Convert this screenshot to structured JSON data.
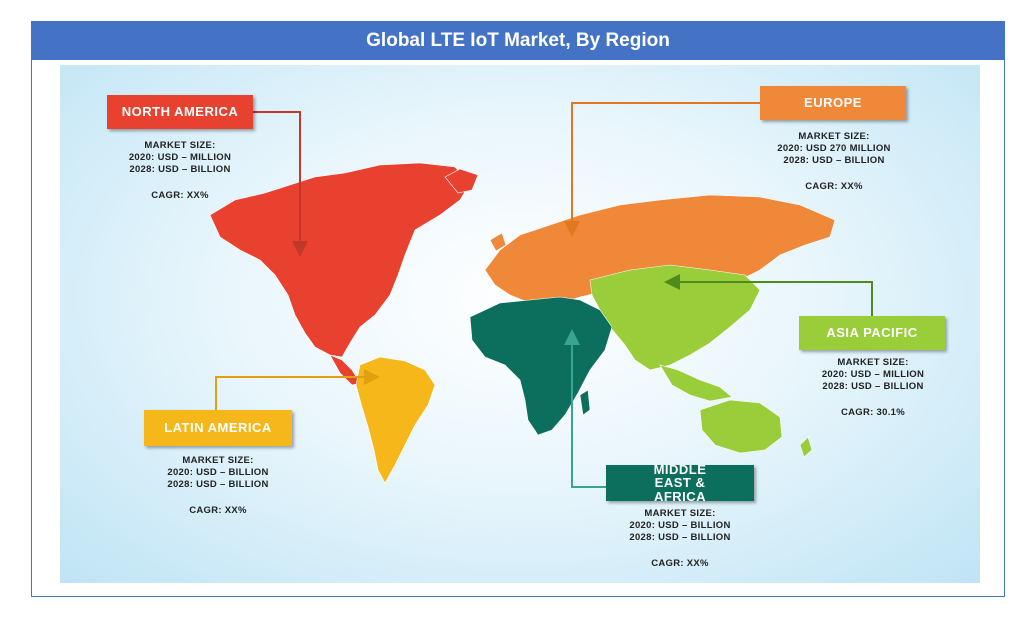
{
  "title": "Global LTE IoT Market, By Region",
  "colors": {
    "frame": "#4472c4",
    "north_america": "#e8412f",
    "europe": "#f0883a",
    "asia_pacific": "#9acd3a",
    "latin_america": "#f5b71a",
    "middle_east_africa": "#0c6e5c"
  },
  "regions": {
    "north_america": {
      "name": "NORTH AMERICA",
      "market_size_label": "MARKET  SIZE:",
      "line_2020": "2020: USD – MILLION",
      "line_2028": "2028: USD – BILLION",
      "cagr": "CAGR: XX%"
    },
    "europe": {
      "name": "EUROPE",
      "market_size_label": "MARKET  SIZE:",
      "line_2020": "2020: USD 270 MILLION",
      "line_2028": "2028: USD – BILLION",
      "cagr": "CAGR: XX%"
    },
    "asia_pacific": {
      "name": "ASIA PACIFIC",
      "market_size_label": "MARKET  SIZE:",
      "line_2020": "2020: USD – MILLION",
      "line_2028": "2028: USD – BILLION",
      "cagr": "CAGR: 30.1%"
    },
    "latin_america": {
      "name": "LATIN  AMERICA",
      "market_size_label": "MARKET  SIZE:",
      "line_2020": "2020: USD – BILLION",
      "line_2028": "2028: USD – BILLION",
      "cagr": "CAGR: XX%"
    },
    "middle_east_africa": {
      "name": "MIDDLE EAST & AFRICA",
      "market_size_label": "MARKET  SIZE:",
      "line_2020": "2020: USD – BILLION",
      "line_2028": "2028: USD – BILLION",
      "cagr": "CAGR: XX%"
    }
  }
}
